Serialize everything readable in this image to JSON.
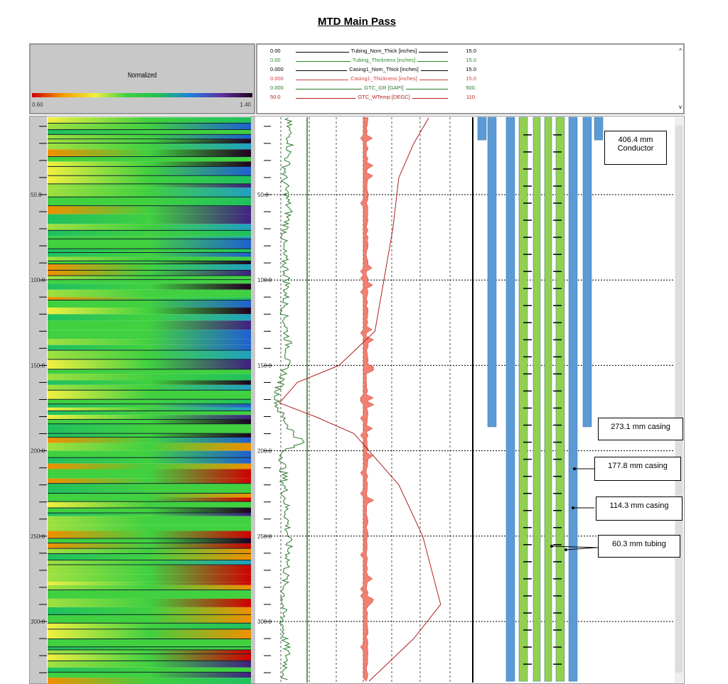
{
  "title": "MTD Main Pass",
  "colorbar": {
    "label": "Normalized",
    "min": "0.60",
    "max": "1.40"
  },
  "legend": [
    {
      "name": "Tubing_Nom_Thick [inches]",
      "min": "0.00",
      "max": "15.0",
      "color": "#000000"
    },
    {
      "name": "Tubing_Thickness [inches]",
      "min": "0.00",
      "max": "15.0",
      "color": "#2a8a2a"
    },
    {
      "name": "Casing1_Nom_Thick [inches]",
      "min": "0.000",
      "max": "15.0",
      "color": "#000000"
    },
    {
      "name": "Casing1_Thickness [inches]",
      "min": "0.000",
      "max": "15.0",
      "color": "#d04040"
    },
    {
      "name": "GTC_GR [GAPI]",
      "min": "0.000",
      "max": "500.",
      "color": "#2a7a2a"
    },
    {
      "name": "GTC_WTemp [DEGC]",
      "min": "50.0",
      "max": "110.",
      "color": "#b02020"
    }
  ],
  "chart_data": {
    "type": "line",
    "depth_ticks": [
      "50.0",
      "100.0",
      "150.0",
      "200.0",
      "250.0",
      "300.0"
    ],
    "depth_range": [
      5,
      335
    ],
    "gr": {
      "name": "GTC_GR [GAPI]",
      "depth": [
        5,
        20,
        40,
        60,
        80,
        100,
        120,
        140,
        155,
        165,
        172,
        180,
        190,
        195,
        200,
        220,
        240,
        260,
        280,
        300,
        320,
        335
      ],
      "value": [
        40,
        50,
        30,
        45,
        25,
        40,
        30,
        45,
        30,
        10,
        5,
        25,
        60,
        90,
        25,
        30,
        40,
        45,
        30,
        25,
        40,
        30
      ]
    },
    "wtemp": {
      "name": "GTC_WTemp [DEGC]",
      "depth": [
        5,
        20,
        40,
        70,
        100,
        130,
        150,
        160,
        172,
        180,
        190,
        200,
        220,
        250,
        290,
        310,
        335
      ],
      "value": [
        100,
        95,
        90,
        88,
        85,
        82,
        70,
        56,
        50,
        62,
        75,
        80,
        90,
        98,
        104,
        95,
        80
      ]
    },
    "casings": [
      {
        "label": "406.4 mm\nConductor",
        "bottom_depth": 18
      },
      {
        "label": "273.1 mm casing",
        "bottom_depth": 186
      },
      {
        "label": "177.8 mm casing",
        "bottom_depth": 335
      },
      {
        "label": "114.3 mm casing",
        "bottom_depth": 335
      },
      {
        "label": "60.3 mm tubing",
        "bottom_depth": 335
      }
    ]
  },
  "annotations": {
    "conductor_1": "406.4 mm",
    "conductor_2": "Conductor",
    "c273": "273.1 mm casing",
    "c177": "177.8 mm casing",
    "c114": "114.3 mm casing",
    "t60": "60.3 mm tubing"
  },
  "scroll": {
    "up": "^",
    "down": "v"
  }
}
